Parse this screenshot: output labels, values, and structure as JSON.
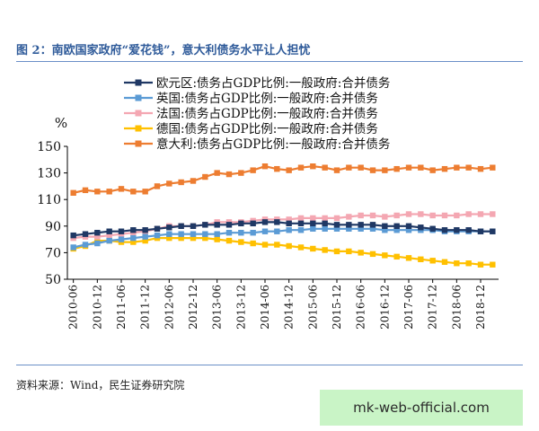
{
  "figure": {
    "title": "图 2：南欧国家政府“爱花钱”，意大利债务水平让人担忧",
    "source": "资料来源：Wind，民生证券研究院",
    "watermark": "mk-web-official.com"
  },
  "chart_data": {
    "type": "line",
    "title": "",
    "ylabel": "%",
    "xlabel": "",
    "ylim": [
      50,
      150
    ],
    "yticks": [
      50,
      70,
      90,
      110,
      130,
      150
    ],
    "grid": false,
    "legend_position": "top",
    "x": [
      "2010-06",
      "2010-09",
      "2010-12",
      "2011-03",
      "2011-06",
      "2011-09",
      "2011-12",
      "2012-03",
      "2012-06",
      "2012-09",
      "2012-12",
      "2013-03",
      "2013-06",
      "2013-09",
      "2013-12",
      "2014-03",
      "2014-06",
      "2014-09",
      "2014-12",
      "2015-03",
      "2015-06",
      "2015-09",
      "2015-12",
      "2016-03",
      "2016-06",
      "2016-09",
      "2016-12",
      "2017-03",
      "2017-06",
      "2017-09",
      "2017-12",
      "2018-03",
      "2018-06",
      "2018-09",
      "2018-12",
      "2019-03"
    ],
    "xtick_labels": [
      "2010-06",
      "2010-12",
      "2011-06",
      "2011-12",
      "2012-06",
      "2012-12",
      "2013-06",
      "2013-12",
      "2014-06",
      "2014-12",
      "2015-06",
      "2015-12",
      "2016-06",
      "2016-12",
      "2017-06",
      "2017-12",
      "2018-06",
      "2018-12"
    ],
    "series": [
      {
        "name": "欧元区:债务占GDP比例:一般政府:合并债务",
        "color": "#1f3864",
        "marker": "square",
        "values": [
          83,
          84,
          85,
          86,
          86,
          87,
          87,
          88,
          89,
          90,
          90,
          91,
          91,
          91,
          92,
          92,
          93,
          93,
          92,
          92,
          92,
          92,
          91,
          91,
          91,
          91,
          90,
          90,
          90,
          89,
          88,
          87,
          87,
          87,
          86,
          86
        ]
      },
      {
        "name": "英国:债务占GDP比例:一般政府:合并债务",
        "color": "#5b9bd5",
        "marker": "square",
        "values": [
          74,
          76,
          77,
          79,
          80,
          81,
          82,
          83,
          84,
          84,
          84,
          84,
          84,
          85,
          85,
          85,
          86,
          86,
          87,
          87,
          88,
          88,
          88,
          88,
          88,
          88,
          87,
          87,
          87,
          87,
          87,
          86,
          86,
          86,
          86,
          86
        ]
      },
      {
        "name": "法国:债务占GDP比例:一般政府:合并债务",
        "color": "#f4a7b2",
        "marker": "square",
        "values": [
          81,
          82,
          82,
          83,
          84,
          85,
          86,
          88,
          90,
          90,
          90,
          91,
          93,
          93,
          93,
          94,
          95,
          95,
          95,
          96,
          96,
          96,
          96,
          97,
          98,
          98,
          97,
          98,
          99,
          99,
          98,
          98,
          98,
          99,
          99,
          99
        ]
      },
      {
        "name": "德国:债务占GDP比例:一般政府:合并债务",
        "color": "#ffc000",
        "marker": "square",
        "values": [
          73,
          75,
          79,
          79,
          78,
          78,
          79,
          81,
          81,
          81,
          81,
          81,
          80,
          79,
          78,
          77,
          76,
          76,
          75,
          74,
          73,
          72,
          71,
          71,
          70,
          69,
          68,
          67,
          66,
          65,
          64,
          63,
          62,
          62,
          61,
          61
        ]
      },
      {
        "name": "意大利:债务占GDP比例:一般政府:合并债务",
        "color": "#ed7d31",
        "marker": "square",
        "values": [
          115,
          117,
          116,
          116,
          118,
          116,
          116,
          120,
          122,
          123,
          124,
          127,
          130,
          129,
          130,
          132,
          135,
          133,
          132,
          134,
          135,
          134,
          132,
          134,
          134,
          132,
          132,
          133,
          134,
          134,
          132,
          133,
          134,
          134,
          133,
          134
        ]
      }
    ]
  }
}
